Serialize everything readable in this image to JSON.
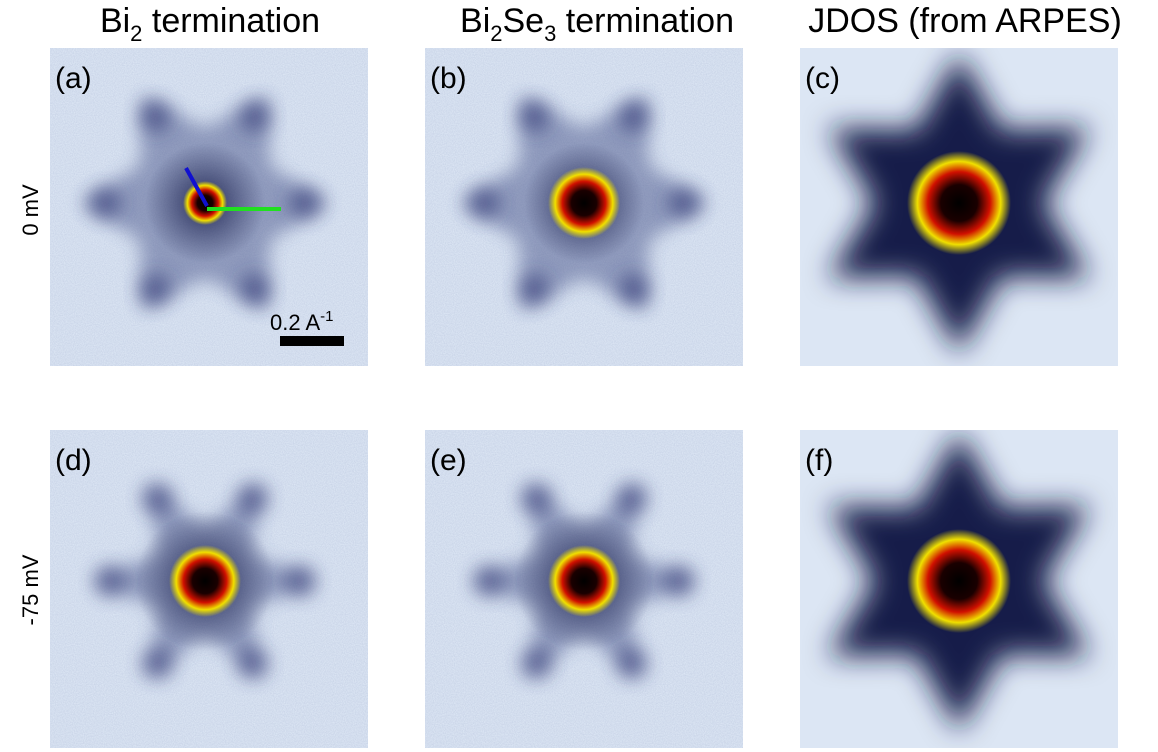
{
  "columns": [
    {
      "parts": [
        "Bi",
        "2",
        " termination"
      ]
    },
    {
      "parts": [
        "Bi",
        "2",
        "Se",
        "3",
        " termination"
      ]
    },
    {
      "parts": [
        "JDOS (from ARPES)"
      ]
    }
  ],
  "rows": [
    "0 mV",
    "-75 mV"
  ],
  "panels": [
    "(a)",
    "(b)",
    "(c)",
    "(d)",
    "(e)",
    "(f)"
  ],
  "scale_bar": {
    "parts": [
      "0.2 A",
      "-1"
    ]
  }
}
